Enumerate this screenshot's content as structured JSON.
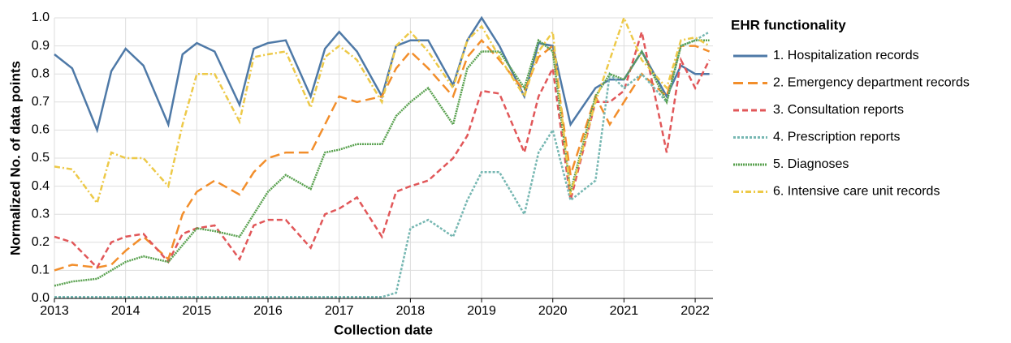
{
  "chart_data": {
    "type": "line",
    "xlabel": "Collection date",
    "ylabel": "Normalized No. of data points",
    "legend_title": "EHR functionality",
    "legend": "right",
    "grid": true,
    "xlim": [
      2013,
      2022.25
    ],
    "xticks": [
      2013,
      2014,
      2015,
      2016,
      2017,
      2018,
      2019,
      2020,
      2021,
      2022
    ],
    "ylim": [
      0,
      1
    ],
    "yticks": [
      {
        "value": 0,
        "label": "0.0"
      },
      0.1,
      0.2,
      0.3,
      0.4,
      0.5,
      0.6,
      0.7,
      0.8,
      0.9,
      {
        "value": 1,
        "label": "1.0"
      }
    ],
    "x": [
      2013,
      2013.25,
      2013.6,
      2013.8,
      2014,
      2014.25,
      2014.6,
      2014.8,
      2015,
      2015.25,
      2015.6,
      2015.8,
      2016,
      2016.25,
      2016.6,
      2016.8,
      2017,
      2017.25,
      2017.6,
      2017.8,
      2018,
      2018.25,
      2018.6,
      2018.8,
      2019,
      2019.25,
      2019.6,
      2019.8,
      2020,
      2020.25,
      2020.6,
      2020.8,
      2021,
      2021.25,
      2021.6,
      2021.8,
      2022,
      2022.2
    ],
    "series": [
      {
        "name": "1. Hospitalization records",
        "color": "#4e79a7",
        "dash": "none",
        "values": [
          0.87,
          0.82,
          0.6,
          0.81,
          0.89,
          0.83,
          0.62,
          0.87,
          0.91,
          0.88,
          0.69,
          0.89,
          0.91,
          0.92,
          0.72,
          0.89,
          0.95,
          0.88,
          0.72,
          0.9,
          0.92,
          0.92,
          0.76,
          0.92,
          1.0,
          0.9,
          0.72,
          0.91,
          0.9,
          0.62,
          0.75,
          0.78,
          0.78,
          0.88,
          0.72,
          0.83,
          0.8,
          0.8
        ]
      },
      {
        "name": "2. Emergency department records",
        "color": "#f28e2b",
        "dash": "12,6",
        "values": [
          0.1,
          0.12,
          0.11,
          0.12,
          0.17,
          0.22,
          0.14,
          0.3,
          0.38,
          0.42,
          0.37,
          0.45,
          0.5,
          0.52,
          0.52,
          0.62,
          0.72,
          0.7,
          0.72,
          0.82,
          0.88,
          0.82,
          0.72,
          0.86,
          0.92,
          0.85,
          0.74,
          0.86,
          0.9,
          0.44,
          0.72,
          0.62,
          0.7,
          0.8,
          0.72,
          0.9,
          0.9,
          0.88
        ]
      },
      {
        "name": "3. Consultation reports",
        "color": "#e15759",
        "dash": "7,4",
        "values": [
          0.22,
          0.2,
          0.11,
          0.2,
          0.22,
          0.23,
          0.13,
          0.23,
          0.25,
          0.26,
          0.14,
          0.26,
          0.28,
          0.28,
          0.18,
          0.3,
          0.32,
          0.36,
          0.22,
          0.38,
          0.4,
          0.42,
          0.5,
          0.58,
          0.74,
          0.73,
          0.52,
          0.72,
          0.82,
          0.35,
          0.7,
          0.7,
          0.74,
          0.95,
          0.52,
          0.85,
          0.75,
          0.85
        ]
      },
      {
        "name": "4. Prescription reports",
        "color": "#76b7b2",
        "dash": "3,2",
        "values": [
          0.005,
          0.005,
          0.005,
          0.005,
          0.005,
          0.005,
          0.005,
          0.005,
          0.005,
          0.005,
          0.005,
          0.005,
          0.005,
          0.005,
          0.005,
          0.005,
          0.005,
          0.005,
          0.005,
          0.02,
          0.25,
          0.28,
          0.22,
          0.35,
          0.45,
          0.45,
          0.3,
          0.52,
          0.6,
          0.35,
          0.42,
          0.8,
          0.75,
          0.8,
          0.7,
          0.9,
          0.92,
          0.95
        ]
      },
      {
        "name": "5. Diagnoses",
        "color": "#59a14f",
        "dash": "2,1",
        "values": [
          0.045,
          0.06,
          0.07,
          0.1,
          0.13,
          0.15,
          0.13,
          0.19,
          0.25,
          0.24,
          0.22,
          0.3,
          0.38,
          0.44,
          0.39,
          0.52,
          0.53,
          0.55,
          0.55,
          0.65,
          0.7,
          0.75,
          0.62,
          0.82,
          0.88,
          0.88,
          0.75,
          0.92,
          0.88,
          0.38,
          0.72,
          0.8,
          0.78,
          0.88,
          0.7,
          0.9,
          0.92,
          0.92
        ]
      },
      {
        "name": "6. Intensive care unit records",
        "color": "#edc948",
        "dash": "7,3,2,3",
        "values": [
          0.47,
          0.46,
          0.34,
          0.52,
          0.5,
          0.5,
          0.4,
          0.62,
          0.8,
          0.8,
          0.63,
          0.86,
          0.87,
          0.88,
          0.68,
          0.86,
          0.9,
          0.85,
          0.7,
          0.9,
          0.95,
          0.88,
          0.75,
          0.92,
          0.97,
          0.86,
          0.72,
          0.88,
          0.95,
          0.37,
          0.7,
          0.85,
          1.0,
          0.85,
          0.75,
          0.92,
          0.93,
          0.9
        ]
      }
    ]
  }
}
